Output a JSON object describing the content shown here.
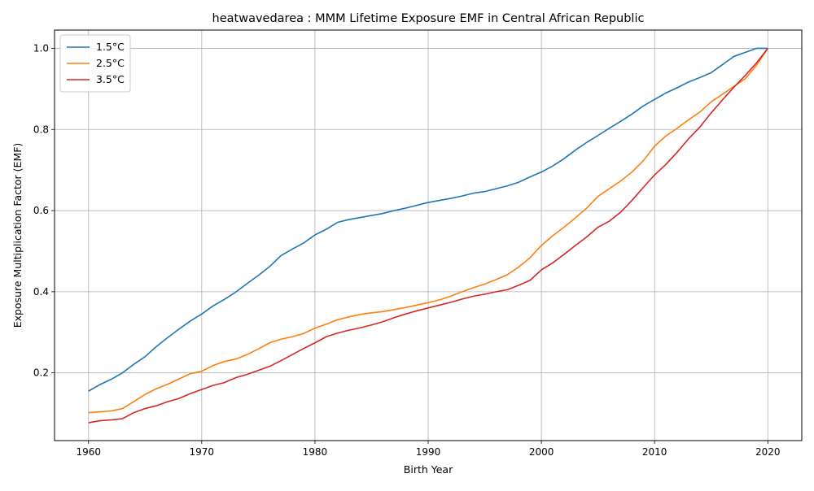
{
  "chart_data": {
    "type": "line",
    "title": "heatwavedarea : MMM Lifetime Exposure EMF in Central African Republic",
    "xlabel": "Birth Year",
    "ylabel": "Exposure Multiplication Factor (EMF)",
    "xlim": [
      1957,
      2023
    ],
    "ylim": [
      0.033,
      1.045
    ],
    "xticks": [
      1960,
      1970,
      1980,
      1990,
      2000,
      2010,
      2020
    ],
    "yticks": [
      0.2,
      0.4,
      0.6,
      0.8,
      1.0
    ],
    "xtick_labels": [
      "1960",
      "1970",
      "1980",
      "1990",
      "2000",
      "2010",
      "2020"
    ],
    "ytick_labels": [
      "0.2",
      "0.4",
      "0.6",
      "0.8",
      "1.0"
    ],
    "grid": true,
    "legend_position": "top-left",
    "x": [
      1960,
      1961,
      1962,
      1963,
      1964,
      1965,
      1966,
      1967,
      1968,
      1969,
      1970,
      1971,
      1972,
      1973,
      1974,
      1975,
      1976,
      1977,
      1978,
      1979,
      1980,
      1981,
      1982,
      1983,
      1984,
      1985,
      1986,
      1987,
      1988,
      1989,
      1990,
      1991,
      1992,
      1993,
      1994,
      1995,
      1996,
      1997,
      1998,
      1999,
      2000,
      2001,
      2002,
      2003,
      2004,
      2005,
      2006,
      2007,
      2008,
      2009,
      2010,
      2011,
      2012,
      2013,
      2014,
      2015,
      2016,
      2017,
      2018,
      2019,
      2020
    ],
    "series": [
      {
        "name": "1.5°C",
        "color": "#1f77b4",
        "values": [
          0.155,
          0.171,
          0.184,
          0.2,
          0.221,
          0.24,
          0.265,
          0.287,
          0.308,
          0.328,
          0.345,
          0.365,
          0.381,
          0.399,
          0.42,
          0.44,
          0.462,
          0.489,
          0.505,
          0.52,
          0.54,
          0.554,
          0.571,
          0.578,
          0.583,
          0.588,
          0.593,
          0.6,
          0.606,
          0.613,
          0.62,
          0.625,
          0.63,
          0.636,
          0.643,
          0.647,
          0.654,
          0.661,
          0.67,
          0.683,
          0.695,
          0.71,
          0.728,
          0.749,
          0.768,
          0.785,
          0.803,
          0.82,
          0.838,
          0.858,
          0.874,
          0.89,
          0.903,
          0.917,
          0.928,
          0.94,
          0.96,
          0.98,
          0.99,
          1.0,
          1.0
        ]
      },
      {
        "name": "2.5°C",
        "color": "#ff7f0e",
        "values": [
          0.102,
          0.104,
          0.106,
          0.112,
          0.129,
          0.147,
          0.161,
          0.172,
          0.185,
          0.198,
          0.204,
          0.218,
          0.228,
          0.234,
          0.245,
          0.259,
          0.274,
          0.283,
          0.289,
          0.297,
          0.31,
          0.32,
          0.331,
          0.338,
          0.344,
          0.348,
          0.351,
          0.356,
          0.361,
          0.367,
          0.373,
          0.38,
          0.389,
          0.4,
          0.41,
          0.419,
          0.43,
          0.442,
          0.461,
          0.484,
          0.514,
          0.538,
          0.559,
          0.582,
          0.606,
          0.635,
          0.654,
          0.673,
          0.695,
          0.723,
          0.759,
          0.784,
          0.803,
          0.824,
          0.843,
          0.868,
          0.887,
          0.906,
          0.925,
          0.958,
          1.0
        ]
      },
      {
        "name": "3.5°C",
        "color": "#d62728",
        "values": [
          0.077,
          0.082,
          0.084,
          0.087,
          0.102,
          0.112,
          0.119,
          0.129,
          0.137,
          0.149,
          0.159,
          0.169,
          0.176,
          0.188,
          0.196,
          0.206,
          0.216,
          0.23,
          0.245,
          0.26,
          0.274,
          0.289,
          0.298,
          0.305,
          0.311,
          0.318,
          0.326,
          0.336,
          0.345,
          0.353,
          0.36,
          0.367,
          0.374,
          0.382,
          0.389,
          0.394,
          0.4,
          0.405,
          0.416,
          0.428,
          0.454,
          0.471,
          0.492,
          0.514,
          0.535,
          0.559,
          0.574,
          0.596,
          0.625,
          0.657,
          0.688,
          0.714,
          0.744,
          0.777,
          0.806,
          0.841,
          0.873,
          0.904,
          0.933,
          0.964,
          1.0
        ]
      }
    ]
  }
}
